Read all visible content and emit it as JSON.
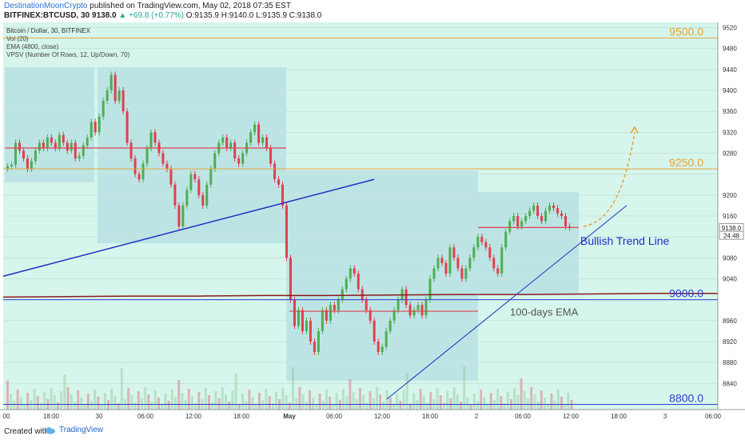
{
  "header": {
    "author": "DestinationMoonCrypto",
    "published": "published on TradingView.com, May 02, 2018 07:35 EST",
    "symbol": "BITFINEX:BTCUSD, 30",
    "price": "9138.0",
    "change": "▲ +69.8 (+0.77%)",
    "ohlc": "O:9135.9 H:9140.0 L:9135.9 C:9138.0"
  },
  "legend": {
    "title": "Bitcoin / Dollar, 30, BITFINEX",
    "vol": "Vol (20)",
    "ema": "EMA (4800, close)",
    "vpsv": "VPSV (Number Of Rows, 12, Up/Down, 70)"
  },
  "footer": {
    "made_with": "Created with",
    "brand": "TradingView"
  },
  "colors": {
    "background": "#d6f5ec",
    "up": "#4caf50",
    "down": "#e0404d",
    "trend": "#1e2fc0",
    "level_orange": "#e8a33a",
    "level_blue": "#2b3fcf",
    "ema": "#8b1a1a",
    "box": "#a9d6e0"
  },
  "chart_data": {
    "type": "candlestick",
    "ylim": [
      8790,
      9530
    ],
    "y_ticks": [
      9520,
      9480,
      9440,
      9400,
      9360,
      9320,
      9280,
      9240,
      9200,
      9160,
      9120,
      9080,
      9040,
      9000,
      8960,
      8920,
      8880,
      8840,
      8800
    ],
    "x_tick_labels": [
      "00",
      "18:00",
      "30",
      "06:00",
      "12:00",
      "18:00",
      "May",
      "06:00",
      "12:00",
      "18:00",
      "2",
      "06:00",
      "12:00",
      "18:00",
      "3",
      "06:00"
    ],
    "levels": [
      {
        "label": "9500.0",
        "value": 9500,
        "tag": "9500.0",
        "color": "#e8a33a"
      },
      {
        "label": "9250.0",
        "value": 9250,
        "tag": "9250.0",
        "color": "#e8a33a"
      },
      {
        "label": "9000.0",
        "value": 9000,
        "tag": "9000.0",
        "color": "#2b3fcf"
      },
      {
        "label": "8800.0",
        "value": 8800,
        "tag": "8800.0",
        "color": "#2b3fcf"
      }
    ],
    "price_tag": "9138.0",
    "price_tag2": "24.48",
    "annotations": [
      "Bullish Trend Line",
      "100-days EMA"
    ],
    "candles": [
      9255,
      9258,
      9300,
      9285,
      9270,
      9250,
      9265,
      9285,
      9300,
      9290,
      9310,
      9300,
      9290,
      9315,
      9300,
      9285,
      9300,
      9270,
      9275,
      9295,
      9310,
      9340,
      9320,
      9350,
      9380,
      9400,
      9430,
      9380,
      9400,
      9360,
      9300,
      9270,
      9240,
      9230,
      9260,
      9290,
      9320,
      9300,
      9280,
      9260,
      9250,
      9220,
      9180,
      9140,
      9180,
      9210,
      9240,
      9230,
      9200,
      9180,
      9220,
      9250,
      9280,
      9300,
      9310,
      9290,
      9300,
      9270,
      9260,
      9280,
      9300,
      9320,
      9335,
      9300,
      9310,
      9290,
      9260,
      9230,
      9220,
      9180,
      9080,
      9000,
      8950,
      8980,
      8940,
      8960,
      8920,
      8900,
      8940,
      8980,
      8960,
      8990,
      8980,
      9000,
      9020,
      9040,
      9060,
      9050,
      9020,
      9000,
      8980,
      8960,
      8920,
      8900,
      8910,
      8940,
      8960,
      8980,
      9000,
      9020,
      8990,
      8970,
      8980,
      8990,
      8970,
      9000,
      9040,
      9060,
      9080,
      9070,
      9050,
      9100,
      9080,
      9060,
      9040,
      9060,
      9080,
      9100,
      9120,
      9110,
      9100,
      9080,
      9060,
      9050,
      9100,
      9130,
      9150,
      9160,
      9140,
      9150,
      9160,
      9170,
      9180,
      9160,
      9150,
      9170,
      9180,
      9175,
      9165,
      9160,
      9140,
      9138
    ],
    "ema": [
      9005,
      9006,
      9007,
      9007,
      9008,
      9008,
      9009,
      9010,
      9010,
      9011,
      9012,
      9012
    ]
  }
}
